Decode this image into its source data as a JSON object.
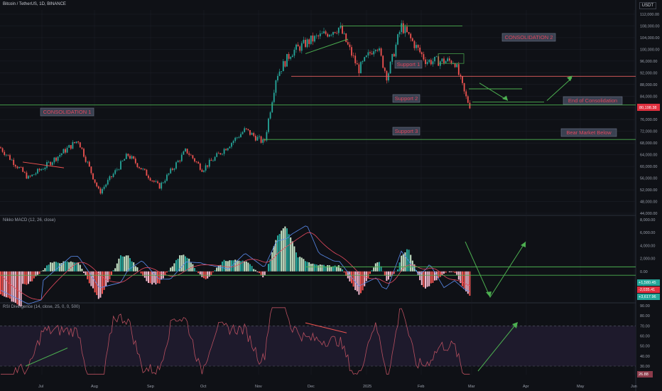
{
  "symbol_title": "Bitcoin / TetherUS, 1D, BINANCE",
  "currency": "USDT",
  "colors": {
    "bg": "#0f1116",
    "grid": "#1c1f27",
    "up": "#26a69a",
    "down": "#ef5350",
    "line": "#4caf50",
    "label_bg": "#3a4151",
    "label_text": "#e0485f",
    "macd": "#5b8def",
    "signal": "#e84a5f",
    "rsi": "#b84f5f",
    "axis_text": "#9aa0ac",
    "sr_red": "#e45f5f"
  },
  "annotations": {
    "consolidation_1": "CONSOLIDATION 1",
    "consolidation_2": "CONSOLIDATION 2",
    "support_1": "Support 1",
    "support_2": "Support 2",
    "support_3": "Support 3",
    "end_consolidation": "End of Consolidation",
    "bear_market": "Bear Market Below"
  },
  "price_axis_ticks": [
    "112,000.00",
    "108,000.00",
    "104,000.00",
    "100,000.00",
    "96,000.00",
    "92,000.00",
    "88,000.00",
    "84,000.00",
    "80,000.00",
    "76,000.00",
    "72,000.00",
    "68,000.00",
    "64,000.00",
    "60,000.00",
    "56,000.00",
    "52,000.00",
    "48,000.00",
    "44,000.00"
  ],
  "last_price_label": "80,198.38",
  "macd_title": "Nikko MACD (12, 26, close)",
  "macd_axis_ticks": [
    "8,000.00",
    "6,000.00",
    "4,000.00",
    "2,000.00",
    "0.00",
    "-2,000.00"
  ],
  "macd_value_labels": [
    "+1,580.45",
    "-2,035.41",
    "+3,617.96"
  ],
  "rsi_title": "RSI Divergence (14, close, 25, 0, 0, 500)",
  "rsi_axis_ticks": [
    "90.00",
    "80.00",
    "70.00",
    "60.00",
    "50.00",
    "40.00",
    "30.00"
  ],
  "rsi_value_label": "26.88",
  "time_axis_ticks": [
    "Jul",
    "Aug",
    "Sep",
    "Oct",
    "Nov",
    "Dec",
    "2025",
    "Feb",
    "Mar",
    "Apr",
    "May",
    "Jun"
  ],
  "chart_data": {
    "type": "candlestick",
    "title": "Bitcoin / TetherUS, 1D, BINANCE",
    "ylim": [
      44000,
      112000
    ],
    "support_resistance_levels": [
      90800,
      81000,
      69000
    ],
    "consolidation_2_top": 108000,
    "price_path": [
      [
        "Jun 18",
        66500
      ],
      [
        "Jul 5",
        56000
      ],
      [
        "Jul 14",
        60500
      ],
      [
        "Jul 29",
        69000
      ],
      [
        "Aug 5",
        51000
      ],
      [
        "Aug 23",
        64000
      ],
      [
        "Sep 6",
        53000
      ],
      [
        "Sep 28",
        65500
      ],
      [
        "Oct 10",
        59000
      ],
      [
        "Oct 29",
        72500
      ],
      [
        "Nov 4",
        68000
      ],
      [
        "Nov 13",
        91000
      ],
      [
        "Nov 22",
        99000
      ],
      [
        "Dec 5",
        103000
      ],
      [
        "Dec 17",
        107500
      ],
      [
        "Dec 26",
        93000
      ],
      [
        "Jan 7",
        102000
      ],
      [
        "Jan 13",
        90500
      ],
      [
        "Jan 20",
        108000
      ],
      [
        "Feb 3",
        96000
      ],
      [
        "Feb 21",
        96000
      ],
      [
        "Feb 26",
        84000
      ],
      [
        "Feb 28",
        80198
      ]
    ],
    "macd_ylim": [
      -3500,
      8000
    ],
    "rsi_ylim": [
      20,
      90
    ],
    "rsi_bands": [
      70,
      30
    ]
  }
}
